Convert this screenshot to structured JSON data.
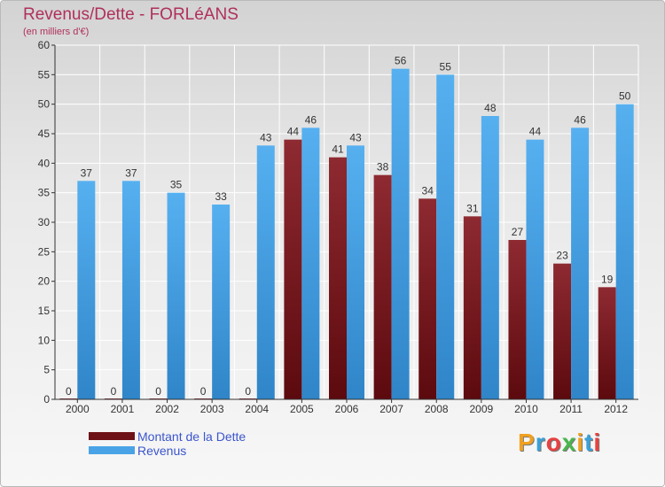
{
  "title": "Revenus/Dette - FORLéANS",
  "subtitle": "(en milliers d'€)",
  "logo": [
    "P",
    "r",
    "o",
    "x",
    "i",
    "t",
    "i"
  ],
  "logo_colors": [
    "#f0a020",
    "#3aa0d8",
    "#e84040",
    "#49b64e",
    "#f0a020",
    "#3aa0d8",
    "#e84040"
  ],
  "colors": {
    "dette": "#7a1e24",
    "revenus": "#4aa3e6",
    "title": "#b0305a",
    "legend_text": "#3b55cc"
  },
  "chart_data": {
    "type": "bar",
    "title": "Revenus/Dette - FORLéANS",
    "subtitle": "(en milliers d'€)",
    "categories": [
      "2000",
      "2001",
      "2002",
      "2003",
      "2004",
      "2005",
      "2006",
      "2007",
      "2008",
      "2009",
      "2010",
      "2011",
      "2012"
    ],
    "series": [
      {
        "name": "Montant de la Dette",
        "values": [
          0,
          0,
          0,
          0,
          0,
          44,
          41,
          38,
          34,
          31,
          27,
          23,
          19
        ]
      },
      {
        "name": "Revenus",
        "values": [
          37,
          37,
          35,
          33,
          43,
          46,
          43,
          56,
          55,
          48,
          44,
          46,
          50
        ]
      }
    ],
    "ylim": [
      0,
      60
    ],
    "yticks": [
      0,
      5,
      10,
      15,
      20,
      25,
      30,
      35,
      40,
      45,
      50,
      55,
      60
    ],
    "grid": true,
    "legend": "bottom-left"
  }
}
